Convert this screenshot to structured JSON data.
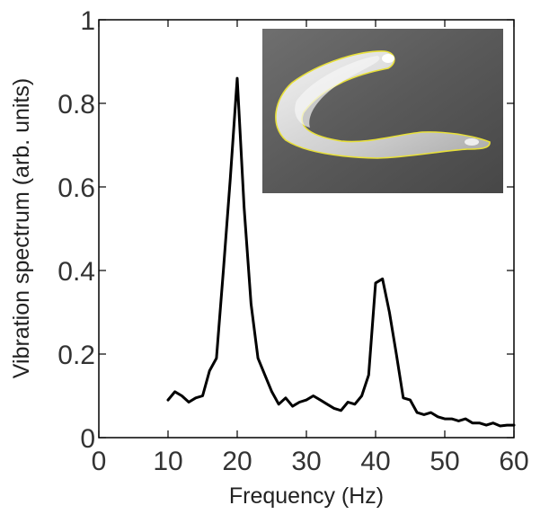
{
  "chart_data": {
    "type": "line",
    "title": "",
    "xlabel": "Frequency (Hz)",
    "ylabel": "Vibration spectrum (arb. units)",
    "xlim": [
      0,
      60
    ],
    "ylim": [
      0,
      1
    ],
    "xticks": [
      0,
      10,
      20,
      30,
      40,
      50,
      60
    ],
    "yticks": [
      0,
      0.2,
      0.4,
      0.6,
      0.8,
      1
    ],
    "ytick_labels": [
      "0",
      "0.2",
      "0.4",
      "0.6",
      "0.8",
      "1"
    ],
    "grid": false,
    "legend": "none",
    "series": [
      {
        "color": "#000000",
        "x": [
          10,
          11,
          12,
          13,
          14,
          15,
          16,
          17,
          18,
          19,
          20,
          21,
          22,
          23,
          24,
          25,
          26,
          27,
          28,
          29,
          30,
          31,
          32,
          33,
          34,
          35,
          36,
          37,
          38,
          39,
          40,
          41,
          42,
          43,
          44,
          45,
          46,
          47,
          48,
          49,
          50,
          51,
          52,
          53,
          54,
          55,
          56,
          57,
          58,
          59,
          60
        ],
        "y": [
          0.09,
          0.11,
          0.1,
          0.085,
          0.095,
          0.1,
          0.16,
          0.19,
          0.4,
          0.62,
          0.86,
          0.55,
          0.32,
          0.19,
          0.15,
          0.11,
          0.08,
          0.095,
          0.075,
          0.085,
          0.09,
          0.1,
          0.09,
          0.08,
          0.07,
          0.065,
          0.085,
          0.08,
          0.1,
          0.15,
          0.37,
          0.38,
          0.3,
          0.2,
          0.095,
          0.09,
          0.06,
          0.055,
          0.06,
          0.05,
          0.045,
          0.045,
          0.04,
          0.045,
          0.035,
          0.035,
          0.03,
          0.035,
          0.028,
          0.03,
          0.03
        ]
      }
    ]
  },
  "inset": {
    "kind": "microscope-photo",
    "outline_color": "#e8e03a"
  }
}
